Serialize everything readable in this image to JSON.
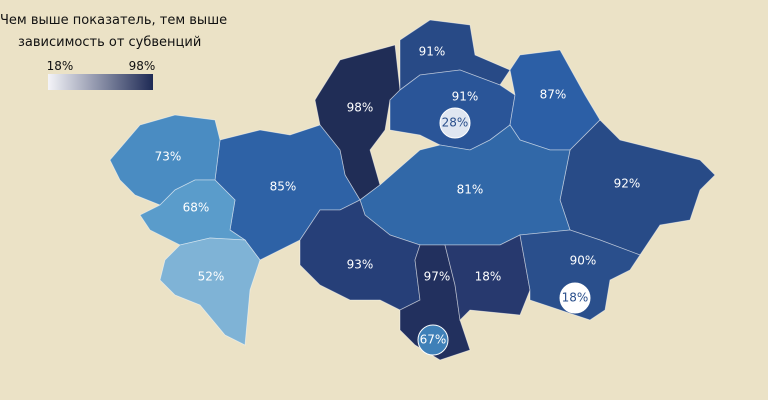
{
  "title": [
    "Чем выше показатель, тем выше",
    "зависимость от субвенций"
  ],
  "legend": {
    "min": {
      "label": "18%",
      "color": "#f4f4f8"
    },
    "max": {
      "label": "98%",
      "color": "#1e2a55"
    }
  },
  "regions": [
    {
      "label": "98%",
      "color": "#202d56"
    },
    {
      "label": "91%",
      "color": "#284a86"
    },
    {
      "label": "91%",
      "color": "#2a5598"
    },
    {
      "label": "87%",
      "color": "#2c5fa6"
    },
    {
      "label": "92%",
      "color": "#284b87"
    },
    {
      "label": "81%",
      "color": "#3168a8"
    },
    {
      "label": "85%",
      "color": "#2e62a6"
    },
    {
      "label": "73%",
      "color": "#4a8cc2"
    },
    {
      "label": "68%",
      "color": "#5a9ccb"
    },
    {
      "label": "52%",
      "color": "#7fb3d6"
    },
    {
      "label": "93%",
      "color": "#263f78"
    },
    {
      "label": "97%",
      "color": "#22305e"
    },
    {
      "label": "18%",
      "color": "#27396e"
    },
    {
      "label": "90%",
      "color": "#2a4f8c"
    }
  ],
  "cities": [
    {
      "label": "28%",
      "color": "#dfe6f1",
      "text_color": "#2a4f8c"
    },
    {
      "label": "18%",
      "color": "#ffffff",
      "text_color": "#2a4f8c"
    },
    {
      "label": "67%",
      "color": "#3f80b8",
      "text_color": "#ffffff"
    }
  ]
}
